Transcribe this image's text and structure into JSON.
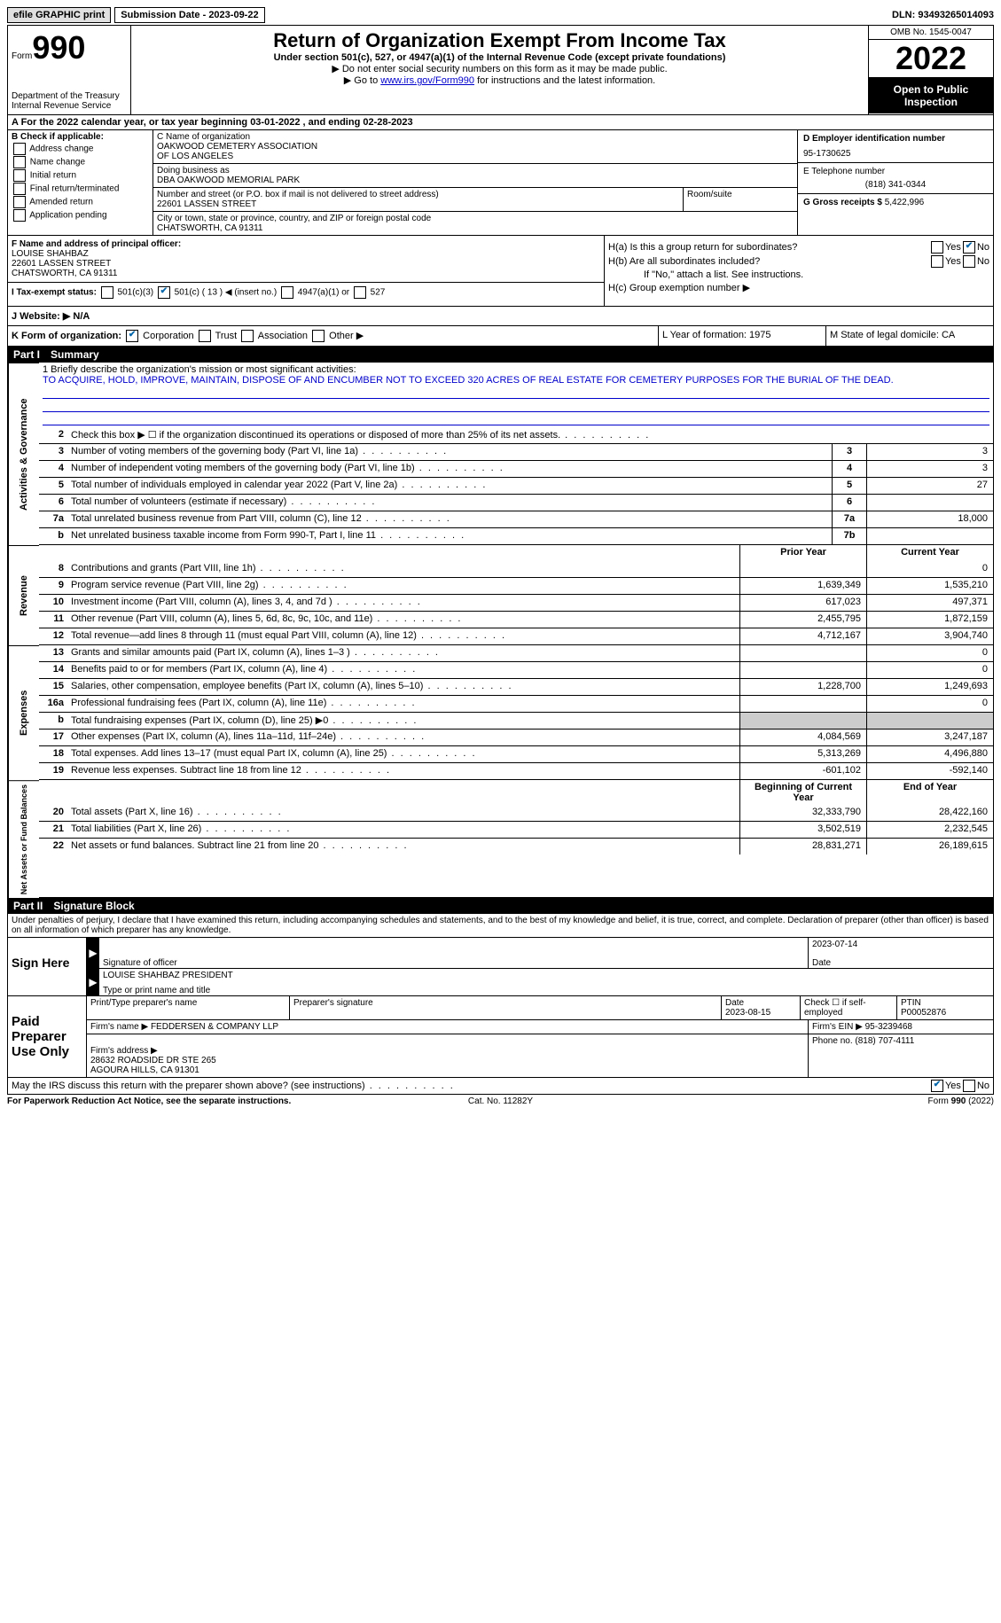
{
  "top": {
    "efile": "efile GRAPHIC print",
    "sub_date_label": "Submission Date - 2023-09-22",
    "dln": "DLN: 93493265014093"
  },
  "header": {
    "form_label": "Form",
    "form_num": "990",
    "title": "Return of Organization Exempt From Income Tax",
    "sub": "Under section 501(c), 527, or 4947(a)(1) of the Internal Revenue Code (except private foundations)",
    "note1": "▶ Do not enter social security numbers on this form as it may be made public.",
    "note2_pre": "▶ Go to ",
    "note2_link": "www.irs.gov/Form990",
    "note2_post": " for instructions and the latest information.",
    "dept": "Department of the Treasury\nInternal Revenue Service",
    "omb": "OMB No. 1545-0047",
    "year": "2022",
    "open": "Open to Public Inspection"
  },
  "rowA": "A For the 2022 calendar year, or tax year beginning 03-01-2022   , and ending 02-28-2023",
  "colB": {
    "title": "B Check if applicable:",
    "items": [
      "Address change",
      "Name change",
      "Initial return",
      "Final return/terminated",
      "Amended return",
      "Application pending"
    ]
  },
  "colC": {
    "name_label": "C Name of organization",
    "name": "OAKWOOD CEMETERY ASSOCIATION\nOF LOS ANGELES",
    "dba_label": "Doing business as",
    "dba": "DBA OAKWOOD MEMORIAL PARK",
    "street_label": "Number and street (or P.O. box if mail is not delivered to street address)",
    "street": "22601 LASSEN STREET",
    "room_label": "Room/suite",
    "city_label": "City or town, state or province, country, and ZIP or foreign postal code",
    "city": "CHATSWORTH, CA  91311"
  },
  "colD": {
    "ein_label": "D Employer identification number",
    "ein": "95-1730625",
    "phone_label": "E Telephone number",
    "phone": "(818) 341-0344",
    "gross_label": "G Gross receipts $",
    "gross": "5,422,996"
  },
  "colF": {
    "label": "F Name and address of principal officer:",
    "name": "LOUISE SHAHBAZ",
    "street": "22601 LASSEN STREET",
    "city": "CHATSWORTH, CA  91311",
    "tax_label": "I   Tax-exempt status:",
    "tax_opts": [
      "501(c)(3)",
      "501(c) ( 13 ) ◀ (insert no.)",
      "4947(a)(1) or",
      "527"
    ]
  },
  "colH": {
    "ha": "H(a)  Is this a group return for subordinates?",
    "hb": "H(b)  Are all subordinates included?",
    "hb_note": "If \"No,\" attach a list. See instructions.",
    "hc": "H(c)  Group exemption number ▶"
  },
  "rowJ": "J   Website: ▶   N/A",
  "rowK": {
    "k": "K Form of organization:",
    "opts": [
      "Corporation",
      "Trust",
      "Association",
      "Other ▶"
    ],
    "l": "L Year of formation: 1975",
    "m": "M State of legal domicile: CA"
  },
  "partI": {
    "num": "Part I",
    "title": "Summary"
  },
  "mission": {
    "label": "1   Briefly describe the organization's mission or most significant activities:",
    "text": "TO ACQUIRE, HOLD, IMPROVE, MAINTAIN, DISPOSE OF AND ENCUMBER NOT TO EXCEED 320 ACRES OF REAL ESTATE FOR CEMETERY PURPOSES FOR THE BURIAL OF THE DEAD."
  },
  "summary": {
    "sections": [
      {
        "label": "Activities & Governance",
        "rows": [
          {
            "n": "2",
            "t": "Check this box ▶ ☐ if the organization discontinued its operations or disposed of more than 25% of its net assets.",
            "bn": "",
            "v": ""
          },
          {
            "n": "3",
            "t": "Number of voting members of the governing body (Part VI, line 1a)",
            "bn": "3",
            "v": "3"
          },
          {
            "n": "4",
            "t": "Number of independent voting members of the governing body (Part VI, line 1b)",
            "bn": "4",
            "v": "3"
          },
          {
            "n": "5",
            "t": "Total number of individuals employed in calendar year 2022 (Part V, line 2a)",
            "bn": "5",
            "v": "27"
          },
          {
            "n": "6",
            "t": "Total number of volunteers (estimate if necessary)",
            "bn": "6",
            "v": ""
          },
          {
            "n": "7a",
            "t": "Total unrelated business revenue from Part VIII, column (C), line 12",
            "bn": "7a",
            "v": "18,000"
          },
          {
            "n": "b",
            "t": "Net unrelated business taxable income from Form 990-T, Part I, line 11",
            "bn": "7b",
            "v": ""
          }
        ]
      }
    ],
    "two_col_header": {
      "prior": "Prior Year",
      "current": "Current Year"
    },
    "revenue": {
      "label": "Revenue",
      "rows": [
        {
          "n": "8",
          "t": "Contributions and grants (Part VIII, line 1h)",
          "p": "",
          "c": "0"
        },
        {
          "n": "9",
          "t": "Program service revenue (Part VIII, line 2g)",
          "p": "1,639,349",
          "c": "1,535,210"
        },
        {
          "n": "10",
          "t": "Investment income (Part VIII, column (A), lines 3, 4, and 7d )",
          "p": "617,023",
          "c": "497,371"
        },
        {
          "n": "11",
          "t": "Other revenue (Part VIII, column (A), lines 5, 6d, 8c, 9c, 10c, and 11e)",
          "p": "2,455,795",
          "c": "1,872,159"
        },
        {
          "n": "12",
          "t": "Total revenue—add lines 8 through 11 (must equal Part VIII, column (A), line 12)",
          "p": "4,712,167",
          "c": "3,904,740"
        }
      ]
    },
    "expenses": {
      "label": "Expenses",
      "rows": [
        {
          "n": "13",
          "t": "Grants and similar amounts paid (Part IX, column (A), lines 1–3 )",
          "p": "",
          "c": "0"
        },
        {
          "n": "14",
          "t": "Benefits paid to or for members (Part IX, column (A), line 4)",
          "p": "",
          "c": "0"
        },
        {
          "n": "15",
          "t": "Salaries, other compensation, employee benefits (Part IX, column (A), lines 5–10)",
          "p": "1,228,700",
          "c": "1,249,693"
        },
        {
          "n": "16a",
          "t": "Professional fundraising fees (Part IX, column (A), line 11e)",
          "p": "",
          "c": "0"
        },
        {
          "n": "b",
          "t": "Total fundraising expenses (Part IX, column (D), line 25) ▶0",
          "p": "shaded",
          "c": "shaded"
        },
        {
          "n": "17",
          "t": "Other expenses (Part IX, column (A), lines 11a–11d, 11f–24e)",
          "p": "4,084,569",
          "c": "3,247,187"
        },
        {
          "n": "18",
          "t": "Total expenses. Add lines 13–17 (must equal Part IX, column (A), line 25)",
          "p": "5,313,269",
          "c": "4,496,880"
        },
        {
          "n": "19",
          "t": "Revenue less expenses. Subtract line 18 from line 12",
          "p": "-601,102",
          "c": "-592,140"
        }
      ]
    },
    "net_header": {
      "prior": "Beginning of Current Year",
      "current": "End of Year"
    },
    "net": {
      "label": "Net Assets or Fund Balances",
      "rows": [
        {
          "n": "20",
          "t": "Total assets (Part X, line 16)",
          "p": "32,333,790",
          "c": "28,422,160"
        },
        {
          "n": "21",
          "t": "Total liabilities (Part X, line 26)",
          "p": "3,502,519",
          "c": "2,232,545"
        },
        {
          "n": "22",
          "t": "Net assets or fund balances. Subtract line 21 from line 20",
          "p": "28,831,271",
          "c": "26,189,615"
        }
      ]
    }
  },
  "partII": {
    "num": "Part II",
    "title": "Signature Block",
    "decl": "Under penalties of perjury, I declare that I have examined this return, including accompanying schedules and statements, and to the best of my knowledge and belief, it is true, correct, and complete. Declaration of preparer (other than officer) is based on all information of which preparer has any knowledge."
  },
  "sign": {
    "label": "Sign Here",
    "sig_label": "Signature of officer",
    "date": "2023-07-14",
    "date_label": "Date",
    "name": "LOUISE SHAHBAZ  PRESIDENT",
    "name_label": "Type or print name and title"
  },
  "preparer": {
    "label": "Paid Preparer Use Only",
    "name_label": "Print/Type preparer's name",
    "sig_label": "Preparer's signature",
    "date_label": "Date",
    "date": "2023-08-15",
    "chk_label": "Check ☐ if self-employed",
    "ptin_label": "PTIN",
    "ptin": "P00052876",
    "firm_name_label": "Firm's name    ▶",
    "firm_name": "FEDDERSEN & COMPANY LLP",
    "firm_ein_label": "Firm's EIN ▶",
    "firm_ein": "95-3239468",
    "firm_addr_label": "Firm's address ▶",
    "firm_addr": "28632 ROADSIDE DR STE 265\nAGOURA HILLS, CA  91301",
    "phone_label": "Phone no.",
    "phone": "(818) 707-4111"
  },
  "discuss": "May the IRS discuss this return with the preparer shown above? (see instructions)",
  "footer": {
    "left": "For Paperwork Reduction Act Notice, see the separate instructions.",
    "mid": "Cat. No. 11282Y",
    "right": "Form 990 (2022)"
  }
}
